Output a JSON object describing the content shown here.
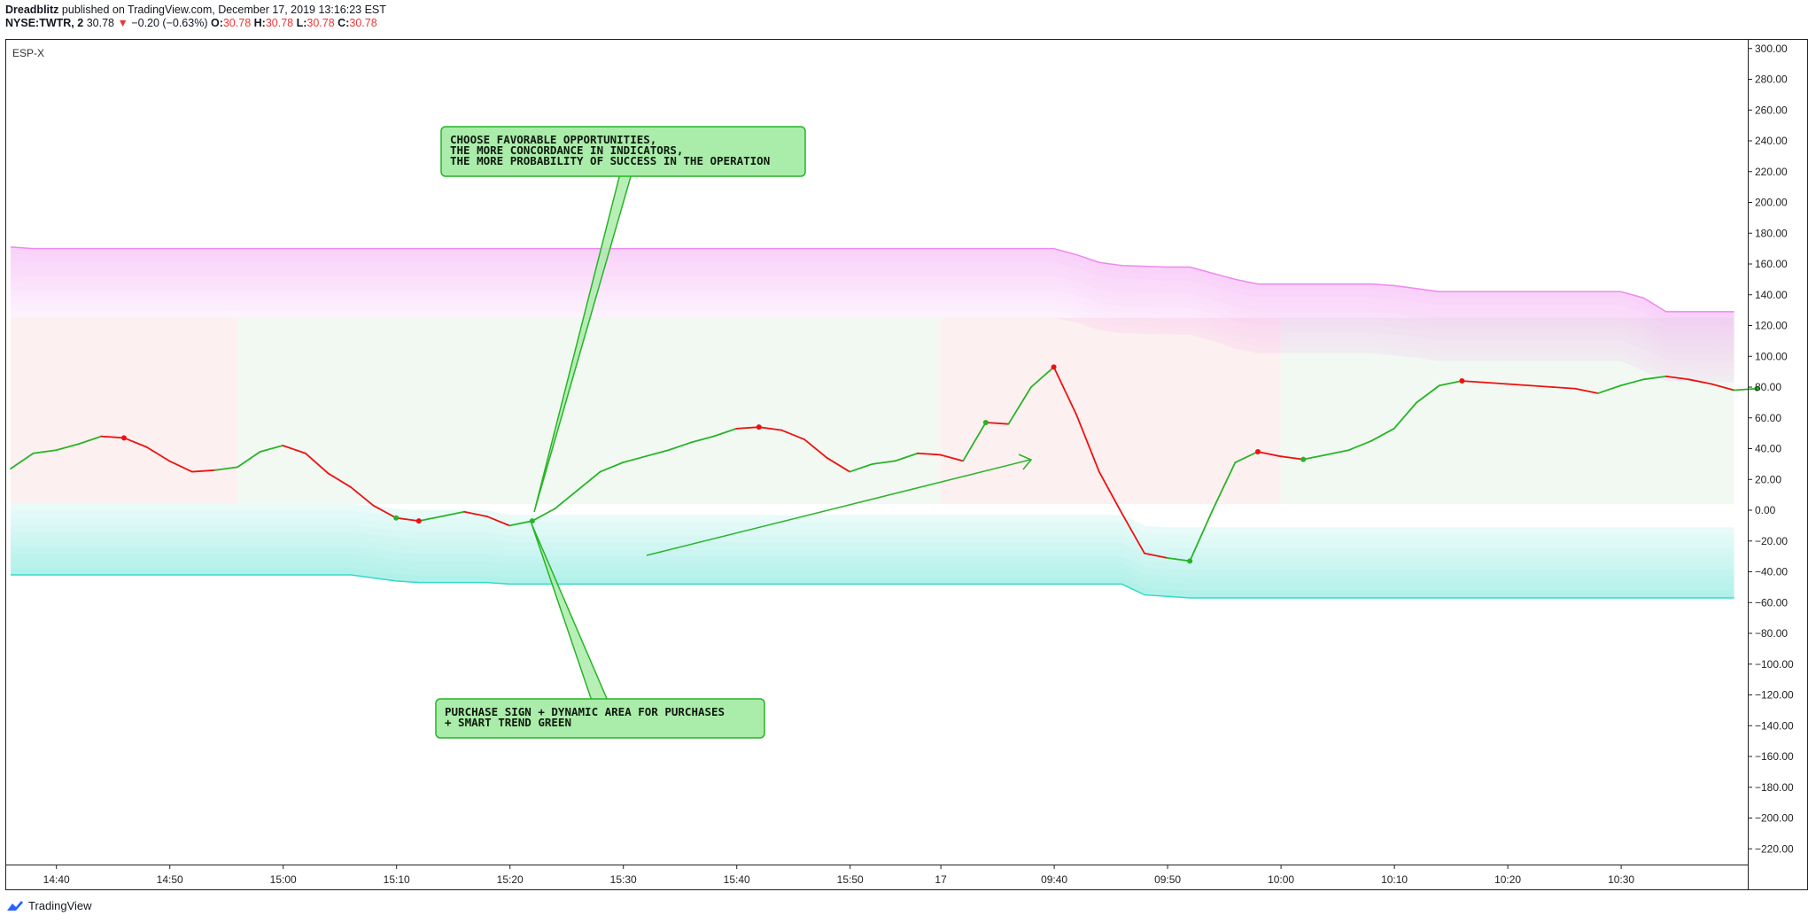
{
  "header": {
    "author": "Dreadblitz",
    "published": "published on TradingView.com, December 17, 2019 13:16:23 EST",
    "symbol": "NYSE:TWTR, 2",
    "last": "30.78",
    "change": "−0.20 (−0.63%)",
    "o_label": "O:",
    "o_val": "30.78",
    "h_label": "H:",
    "h_val": "30.78",
    "l_label": "L:",
    "l_val": "30.78",
    "c_label": "C:",
    "c_val": "30.78"
  },
  "footer": {
    "brand": "TradingView"
  },
  "colors": {
    "up": "#27b427",
    "down": "#ee1111",
    "upper_band": "#ee88ee",
    "lower_band": "#35d9c7",
    "callout_fill": "#aaecaa",
    "callout_border": "#27b427"
  },
  "chart_data": {
    "type": "line",
    "indicator_label": "ESP-X",
    "xaxis_ticks": [
      "14:40",
      "14:50",
      "15:00",
      "15:10",
      "15:20",
      "15:30",
      "15:40",
      "15:50",
      "17",
      "09:40",
      "09:50",
      "10:00",
      "10:10",
      "10:20",
      "10:30"
    ],
    "yaxis_ticks": [
      "300.00",
      "280.00",
      "260.00",
      "240.00",
      "220.00",
      "200.00",
      "180.00",
      "160.00",
      "140.00",
      "120.00",
      "100.00",
      "80.00",
      "60.00",
      "40.00",
      "20.00",
      "0.00",
      "−20.00",
      "−40.00",
      "−60.00",
      "−80.00",
      "−100.00",
      "−120.00",
      "−140.00",
      "−160.00",
      "−180.00",
      "−200.00",
      "−220.00"
    ],
    "ylim": [
      -230,
      305
    ],
    "bar_count": 78,
    "series": [
      {
        "values": [
          27,
          37,
          39,
          43,
          48,
          47,
          41,
          32,
          25,
          26,
          28,
          38,
          42,
          37,
          24,
          15,
          3,
          -5,
          -7,
          -4,
          -1,
          -4,
          -10,
          -7,
          1,
          13,
          25,
          31,
          35,
          39,
          44,
          48,
          53,
          54,
          52,
          46,
          34,
          25,
          30,
          32,
          37,
          36,
          32,
          57,
          56,
          80,
          93,
          62,
          25,
          -2,
          -28,
          -31,
          -33,
          0,
          31,
          38,
          35,
          33,
          36,
          39,
          45,
          53,
          70,
          81,
          84,
          83,
          82,
          81,
          80,
          79,
          76,
          81,
          85,
          87,
          85,
          82,
          78,
          79
        ],
        "colors": [
          "g",
          "g",
          "g",
          "g",
          "r",
          "r",
          "r",
          "r",
          "r",
          "g",
          "g",
          "g",
          "r",
          "r",
          "r",
          "r",
          "r",
          "r",
          "g",
          "g",
          "r",
          "r",
          "g",
          "g",
          "g",
          "g",
          "g",
          "g",
          "g",
          "g",
          "g",
          "g",
          "r",
          "r",
          "r",
          "r",
          "r",
          "g",
          "g",
          "g",
          "r",
          "r",
          "g",
          "r",
          "g",
          "g",
          "r",
          "r",
          "r",
          "r",
          "r",
          "g",
          "g",
          "g",
          "g",
          "r",
          "r",
          "g",
          "g",
          "g",
          "g",
          "g",
          "g",
          "g",
          "r",
          "r",
          "r",
          "r",
          "r",
          "r",
          "g",
          "g",
          "g",
          "r",
          "r",
          "r",
          "g"
        ]
      }
    ],
    "signals": [
      {
        "i": 5,
        "v": 47,
        "c": "r"
      },
      {
        "i": 17,
        "v": -5,
        "c": "g"
      },
      {
        "i": 18,
        "v": -7,
        "c": "r"
      },
      {
        "i": 23,
        "v": -7,
        "c": "g"
      },
      {
        "i": 33,
        "v": 54,
        "c": "r"
      },
      {
        "i": 43,
        "v": 57,
        "c": "g"
      },
      {
        "i": 46,
        "v": 93,
        "c": "r"
      },
      {
        "i": 52,
        "v": -33,
        "c": "g"
      },
      {
        "i": 55,
        "v": 38,
        "c": "r"
      },
      {
        "i": 57,
        "v": 33,
        "c": "g"
      },
      {
        "i": 64,
        "v": 84,
        "c": "r"
      },
      {
        "i": 77,
        "v": 79,
        "c": "g"
      }
    ],
    "upper_band": {
      "outer": [
        [
          0,
          171
        ],
        [
          1,
          170
        ],
        [
          46,
          170
        ],
        [
          47,
          166
        ],
        [
          48,
          161
        ],
        [
          49,
          159
        ],
        [
          51,
          158
        ],
        [
          52,
          158
        ],
        [
          53,
          154
        ],
        [
          54,
          150
        ],
        [
          55,
          147
        ],
        [
          60,
          147
        ],
        [
          61,
          146
        ],
        [
          62,
          144
        ],
        [
          63,
          142
        ],
        [
          71,
          142
        ],
        [
          72,
          138
        ],
        [
          73,
          129
        ],
        [
          76,
          129
        ]
      ],
      "inner": [
        [
          0,
          125
        ],
        [
          46,
          125
        ],
        [
          47,
          122
        ],
        [
          48,
          117
        ],
        [
          49,
          115
        ],
        [
          52,
          114
        ],
        [
          53,
          110
        ],
        [
          54,
          105
        ],
        [
          55,
          102
        ],
        [
          60,
          102
        ],
        [
          62,
          99
        ],
        [
          63,
          97
        ],
        [
          71,
          97
        ],
        [
          73,
          84
        ],
        [
          76,
          83
        ]
      ]
    },
    "lower_band": {
      "inner": [
        [
          0,
          4
        ],
        [
          15,
          4
        ],
        [
          16,
          3
        ],
        [
          17,
          1
        ],
        [
          18,
          0
        ],
        [
          21,
          0
        ],
        [
          22,
          -3
        ],
        [
          49,
          -3
        ],
        [
          50,
          -10
        ],
        [
          51,
          -11
        ],
        [
          52,
          -11
        ],
        [
          76,
          -11
        ]
      ],
      "outer": [
        [
          0,
          -42
        ],
        [
          15,
          -42
        ],
        [
          16,
          -44
        ],
        [
          17,
          -46
        ],
        [
          18,
          -47
        ],
        [
          21,
          -47
        ],
        [
          22,
          -48
        ],
        [
          49,
          -48
        ],
        [
          50,
          -55
        ],
        [
          51,
          -56
        ],
        [
          52,
          -57
        ],
        [
          76,
          -57
        ]
      ]
    },
    "background_zones": [
      {
        "from": 0,
        "to": 10,
        "c": "r"
      },
      {
        "from": 10,
        "to": 41,
        "c": "g"
      },
      {
        "from": 41,
        "to": 56,
        "c": "r"
      },
      {
        "from": 56,
        "to": 76,
        "c": "g"
      }
    ],
    "annotations": [
      {
        "lines": [
          "CHOOSE FAVORABLE OPPORTUNITIES,",
          "THE MORE CONCORDANCE IN INDICATORS,",
          "THE MORE PROBABILITY OF SUCCESS IN THE OPERATION"
        ]
      },
      {
        "lines": [
          "PURCHASE SIGN + DYNAMIC AREA FOR PURCHASES",
          "+ SMART TREND GREEN"
        ]
      }
    ]
  }
}
